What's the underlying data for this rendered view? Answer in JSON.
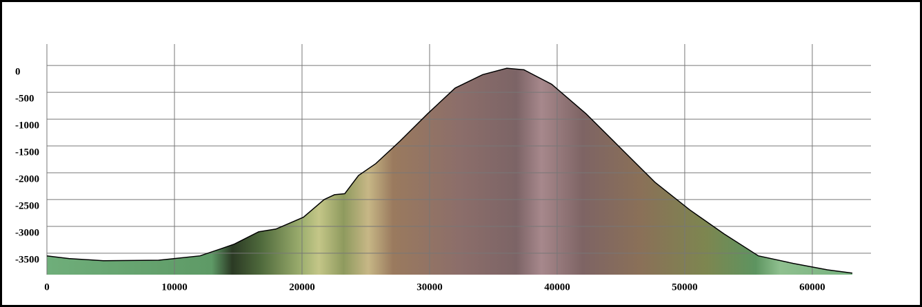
{
  "chart_data": {
    "type": "area",
    "x": [
      0,
      1730,
      4430,
      8760,
      10000,
      12000,
      13620,
      14700,
      16600,
      17950,
      20110,
      21730,
      22540,
      23350,
      24430,
      25780,
      27680,
      29840,
      32000,
      34160,
      36050,
      37400,
      39570,
      42270,
      44970,
      47680,
      50380,
      53080,
      55780,
      58490,
      61190,
      63140
    ],
    "values": [
      -3550,
      -3600,
      -3640,
      -3630,
      -3600,
      -3550,
      -3420,
      -3330,
      -3100,
      -3050,
      -2830,
      -2500,
      -2410,
      -2390,
      -2050,
      -1830,
      -1410,
      -900,
      -420,
      -170,
      -50,
      -80,
      -350,
      -900,
      -1540,
      -2180,
      -2690,
      -3140,
      -3550,
      -3690,
      -3810,
      -3870
    ],
    "xlim": [
      0,
      64600
    ],
    "ylim": [
      -3900,
      400
    ],
    "xticks": [
      0,
      10000,
      20000,
      30000,
      40000,
      50000,
      60000
    ],
    "yticks": [
      0,
      -500,
      -1000,
      -1500,
      -2000,
      -2500,
      -3000,
      -3500
    ],
    "grid": true
  }
}
